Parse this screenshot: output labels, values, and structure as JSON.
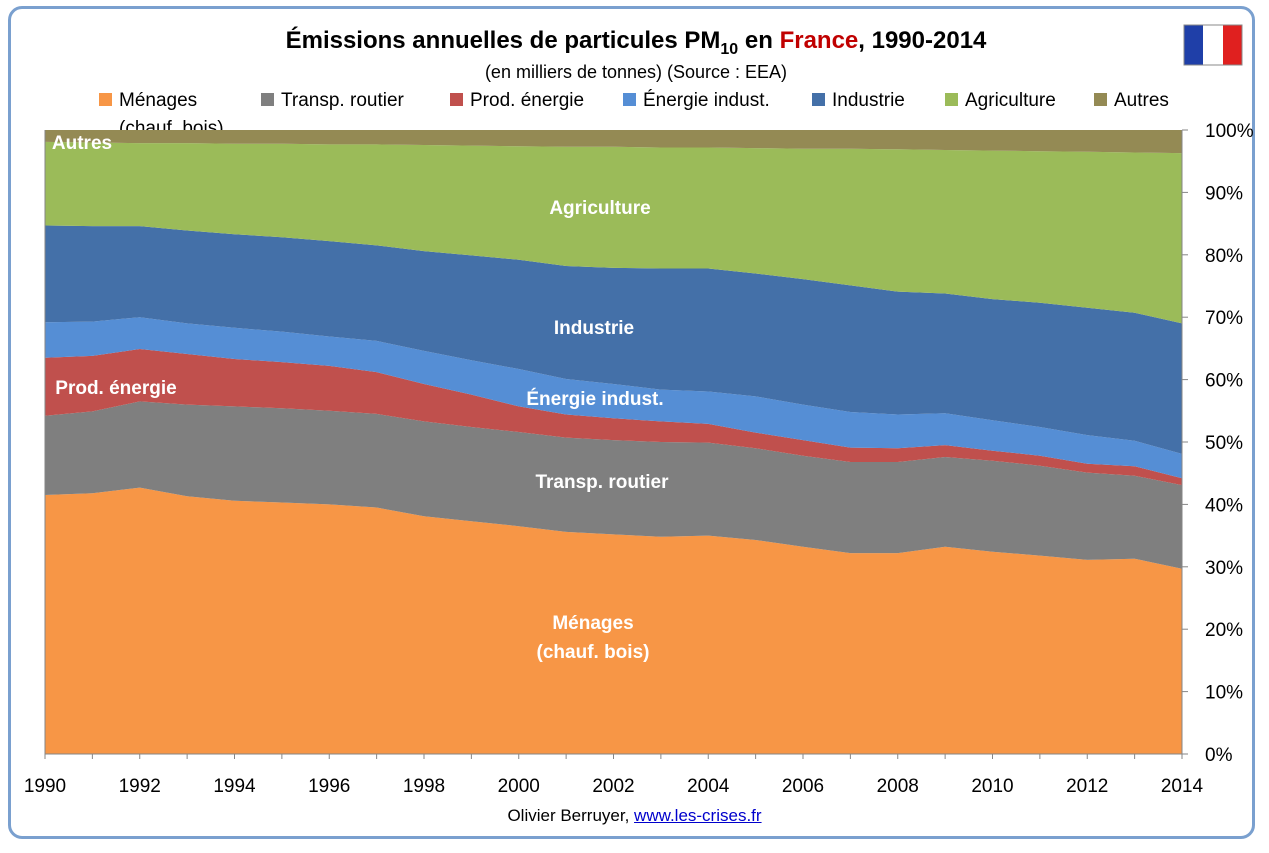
{
  "title": {
    "main": "Émissions annuelles de particules PM",
    "sub": "10",
    "en": "en",
    "country": "France",
    "comma": ",",
    "years": "1990-2014",
    "country_color": "#c00000"
  },
  "subtitle": "(en milliers de tonnes) (Source : EEA)",
  "credit": {
    "author": "Olivier Berruyer,",
    "link": "www.les-crises.fr"
  },
  "flag_icon": "france-flag-icon",
  "legend": [
    {
      "label": "Ménages",
      "label2": "(chauf. bois)",
      "color": "#f79646"
    },
    {
      "label": "Transp. routier",
      "color": "#7f7f7f"
    },
    {
      "label": "Prod. énergie",
      "color": "#c0504d"
    },
    {
      "label": "Énergie indust.",
      "color": "#558ed5"
    },
    {
      "label": "Industrie",
      "color": "#4470a8"
    },
    {
      "label": "Agriculture",
      "color": "#9bbb59"
    },
    {
      "label": "Autres",
      "color": "#948a54"
    }
  ],
  "area_labels": {
    "menages": "Ménages",
    "menages2": "(chauf. bois)",
    "transp": "Transp. routier",
    "prod": "Prod. énergie",
    "energie": "Énergie indust.",
    "industrie": "Industrie",
    "agriculture": "Agriculture",
    "autres": "Autres"
  },
  "chart_data": {
    "type": "area",
    "stacked": "percent",
    "x": [
      1990,
      1991,
      1992,
      1993,
      1994,
      1995,
      1996,
      1997,
      1998,
      1999,
      2000,
      2001,
      2002,
      2003,
      2004,
      2005,
      2006,
      2007,
      2008,
      2009,
      2010,
      2011,
      2012,
      2013,
      2014
    ],
    "x_ticks": [
      "1990",
      "1992",
      "1994",
      "1996",
      "1998",
      "2000",
      "2002",
      "2004",
      "2006",
      "2008",
      "2010",
      "2012",
      "2014"
    ],
    "y_ticks": [
      "0%",
      "10%",
      "20%",
      "30%",
      "40%",
      "50%",
      "60%",
      "70%",
      "80%",
      "90%",
      "100%"
    ],
    "ylim": [
      0,
      100
    ],
    "series_cumulative_percent": [
      {
        "name": "Ménages (chauf. bois)",
        "values": [
          41.5,
          41.8,
          42.7,
          41.3,
          40.6,
          40.3,
          40.0,
          39.5,
          38.1,
          37.3,
          36.5,
          35.6,
          35.2,
          34.8,
          35.0,
          34.3,
          33.2,
          32.2,
          32.2,
          33.2,
          32.4,
          31.8,
          31.1,
          31.3,
          29.7
        ]
      },
      {
        "name": "Transp. routier",
        "values": [
          54.2,
          54.9,
          56.5,
          56.0,
          55.7,
          55.4,
          55.0,
          54.5,
          53.3,
          52.4,
          51.6,
          50.7,
          50.3,
          50.0,
          49.9,
          49.0,
          47.8,
          46.8,
          46.8,
          47.6,
          47.0,
          46.2,
          45.1,
          44.6,
          43.1
        ]
      },
      {
        "name": "Prod. énergie",
        "values": [
          63.5,
          63.8,
          64.9,
          64.1,
          63.3,
          62.8,
          62.2,
          61.2,
          59.3,
          57.6,
          55.7,
          54.4,
          53.8,
          53.3,
          52.9,
          51.5,
          50.3,
          49.1,
          49.0,
          49.5,
          48.6,
          47.8,
          46.5,
          46.1,
          44.2
        ]
      },
      {
        "name": "Énergie indust.",
        "values": [
          69.2,
          69.3,
          70.0,
          69.0,
          68.3,
          67.7,
          66.9,
          66.2,
          64.6,
          63.1,
          61.7,
          60.1,
          59.3,
          58.4,
          58.1,
          57.3,
          56.0,
          54.8,
          54.4,
          54.6,
          53.5,
          52.4,
          51.1,
          50.2,
          48.1
        ]
      },
      {
        "name": "Industrie",
        "values": [
          84.7,
          84.6,
          84.6,
          83.9,
          83.3,
          82.8,
          82.2,
          81.5,
          80.6,
          79.9,
          79.2,
          78.2,
          77.9,
          77.8,
          77.8,
          77.0,
          76.1,
          75.1,
          74.1,
          73.8,
          72.9,
          72.3,
          71.5,
          70.7,
          69.0
        ]
      },
      {
        "name": "Agriculture",
        "values": [
          98.1,
          98.0,
          97.9,
          97.9,
          97.8,
          97.8,
          97.7,
          97.7,
          97.6,
          97.5,
          97.4,
          97.3,
          97.3,
          97.2,
          97.2,
          97.1,
          97.0,
          97.0,
          96.9,
          96.8,
          96.7,
          96.6,
          96.5,
          96.4,
          96.3
        ]
      },
      {
        "name": "Autres",
        "values": [
          100,
          100,
          100,
          100,
          100,
          100,
          100,
          100,
          100,
          100,
          100,
          100,
          100,
          100,
          100,
          100,
          100,
          100,
          100,
          100,
          100,
          100,
          100,
          100,
          100
        ]
      }
    ]
  }
}
